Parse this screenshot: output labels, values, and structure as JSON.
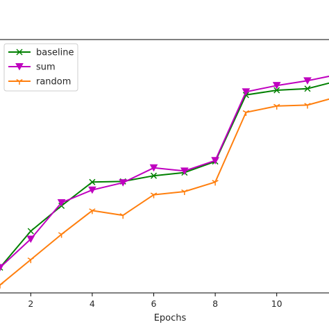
{
  "chart_data": {
    "type": "line",
    "xlabel": "Epochs",
    "ylabel": "",
    "title": "",
    "xlim": [
      1,
      11.7
    ],
    "ylim": [
      0.22,
      1.02
    ],
    "xticks": [
      2,
      4,
      6,
      8,
      10
    ],
    "grid": false,
    "legend_position": "top-left",
    "series": [
      {
        "name": "baseline",
        "color": "#008000",
        "marker": "x",
        "x": [
          1,
          2,
          3,
          4,
          5,
          6,
          7,
          8,
          9,
          10,
          11,
          12
        ],
        "y": [
          0.3,
          0.415,
          0.495,
          0.57,
          0.572,
          0.59,
          0.6,
          0.635,
          0.845,
          0.86,
          0.865,
          0.89
        ]
      },
      {
        "name": "sum",
        "color": "#bf00bf",
        "marker": "triangle-down",
        "x": [
          1,
          2,
          3,
          4,
          5,
          6,
          7,
          8,
          9,
          10,
          11,
          12
        ],
        "y": [
          0.3,
          0.39,
          0.505,
          0.545,
          0.568,
          0.615,
          0.605,
          0.638,
          0.855,
          0.875,
          0.89,
          0.91
        ]
      },
      {
        "name": "random",
        "color": "#ff7f0e",
        "marker": "tri-down",
        "x": [
          1,
          2,
          3,
          4,
          5,
          6,
          7,
          8,
          9,
          10,
          11,
          12
        ],
        "y": [
          0.245,
          0.325,
          0.405,
          0.48,
          0.465,
          0.53,
          0.54,
          0.57,
          0.79,
          0.81,
          0.813,
          0.84
        ]
      }
    ]
  }
}
